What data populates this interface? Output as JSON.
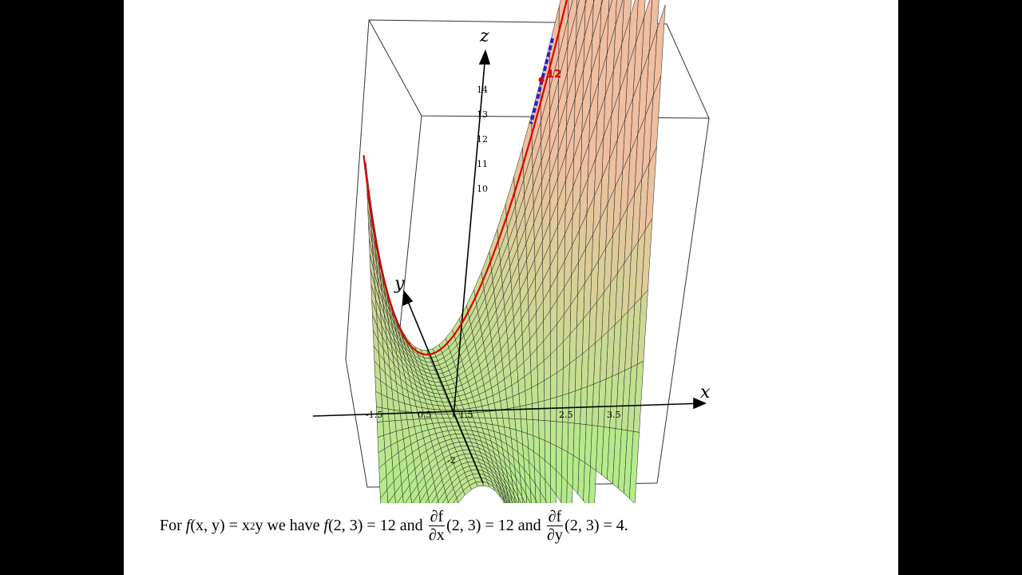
{
  "axes": {
    "x": "x",
    "y": "y",
    "z": "z"
  },
  "x_ticks": [
    "-1.5",
    "0.5",
    "1.5",
    "2.5",
    "3.5"
  ],
  "z_ticks": [
    "14",
    "13",
    "12",
    "11",
    "10"
  ],
  "y_ticks": [
    "-2"
  ],
  "point_label": "12",
  "caption": {
    "intro": "For ",
    "f1": "f",
    "args1": "(x, y) = x",
    "sup": "2",
    "mid1": "y we have ",
    "f2": "f",
    "args2": "(2, 3) = 12 and ",
    "num1": "∂f",
    "den1": "∂x",
    "after1": "(2, 3) = 12 and ",
    "num2": "∂f",
    "den2": "∂y",
    "after2": "(2, 3) = 4."
  }
}
